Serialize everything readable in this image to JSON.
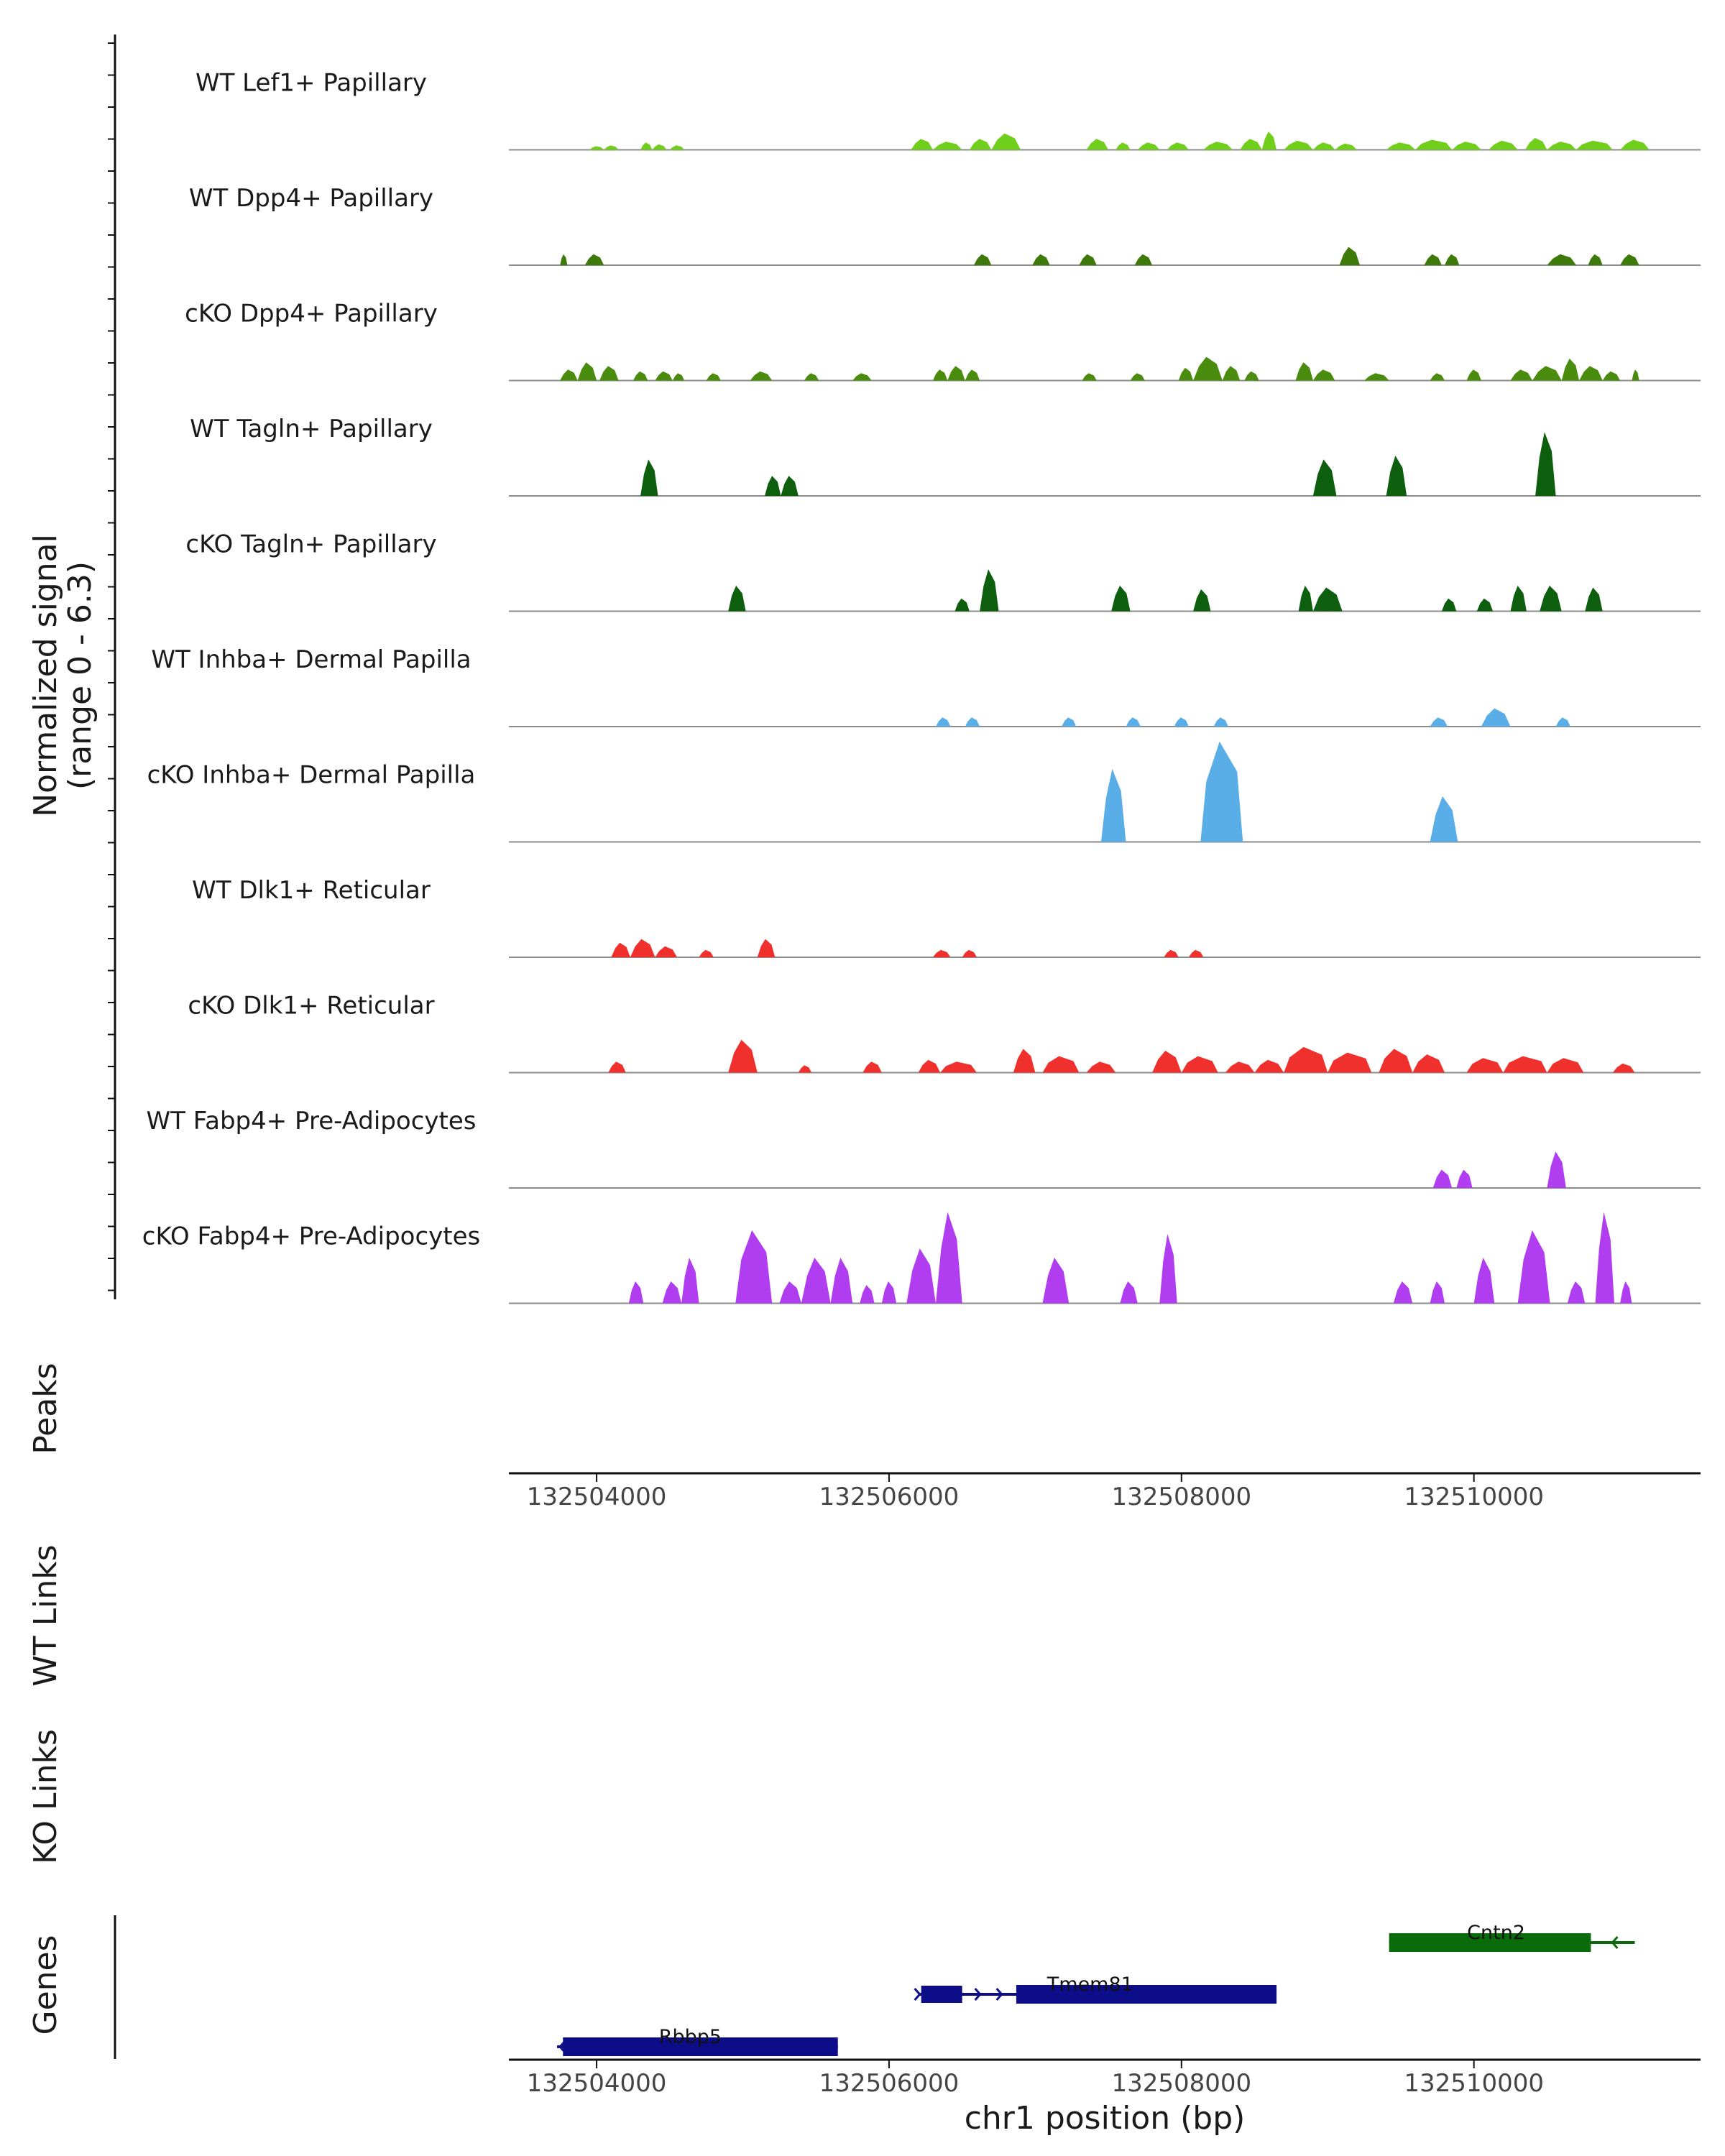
{
  "chart_data": {
    "type": "area",
    "title": "",
    "signal_axis": {
      "label": "Normalized signal",
      "range_label": "(range 0 - 6.3)",
      "ylim": [
        0,
        6.3
      ]
    },
    "xlim": [
      132503400,
      132511550
    ],
    "x_ticks": [
      132504000,
      132506000,
      132508000,
      132510000
    ],
    "x_tick_labels": [
      "132504000",
      "132506000",
      "132508000",
      "132510000"
    ],
    "xlabel": "chr1 position (bp)",
    "tracks": [
      {
        "name": "WT Lef1+ Papillary",
        "color": "#6fcf1a",
        "peaks": [
          [
            132503950,
            132504050,
            0.2
          ],
          [
            132504050,
            132504150,
            0.25
          ],
          [
            132504300,
            132504380,
            0.4
          ],
          [
            132504380,
            132504480,
            0.3
          ],
          [
            132504500,
            132504600,
            0.25
          ],
          [
            132506150,
            132506300,
            0.6
          ],
          [
            132506300,
            132506500,
            0.45
          ],
          [
            132506550,
            132506700,
            0.6
          ],
          [
            132506700,
            132506900,
            0.9
          ],
          [
            132507350,
            132507500,
            0.6
          ],
          [
            132507550,
            132507650,
            0.4
          ],
          [
            132507700,
            132507850,
            0.4
          ],
          [
            132507900,
            132508050,
            0.4
          ],
          [
            132508150,
            132508350,
            0.45
          ],
          [
            132508400,
            132508550,
            0.6
          ],
          [
            132508550,
            132508650,
            1.0
          ],
          [
            132508700,
            132508900,
            0.5
          ],
          [
            132508900,
            132509050,
            0.4
          ],
          [
            132509050,
            132509200,
            0.35
          ],
          [
            132509400,
            132509600,
            0.4
          ],
          [
            132509600,
            132509850,
            0.55
          ],
          [
            132509850,
            132510050,
            0.45
          ],
          [
            132510100,
            132510300,
            0.5
          ],
          [
            132510350,
            132510500,
            0.65
          ],
          [
            132510500,
            132510700,
            0.45
          ],
          [
            132510700,
            132510950,
            0.5
          ],
          [
            132511000,
            132511200,
            0.55
          ]
        ]
      },
      {
        "name": "WT Dpp4+ Papillary",
        "color": "#3d7a0a",
        "peaks": [
          [
            132503750,
            132503800,
            0.6
          ],
          [
            132503920,
            132504050,
            0.6
          ],
          [
            132506580,
            132506700,
            0.6
          ],
          [
            132506980,
            132507100,
            0.6
          ],
          [
            132507300,
            132507420,
            0.6
          ],
          [
            132507680,
            132507800,
            0.6
          ],
          [
            132509080,
            132509220,
            1.0
          ],
          [
            132509660,
            132509780,
            0.6
          ],
          [
            132509800,
            132509900,
            0.6
          ],
          [
            132510500,
            132510700,
            0.6
          ],
          [
            132510780,
            132510880,
            0.6
          ],
          [
            132511000,
            132511130,
            0.6
          ]
        ]
      },
      {
        "name": "cKO Dpp4+ Papillary",
        "color": "#4a8c0e",
        "peaks": [
          [
            132503750,
            132503870,
            0.6
          ],
          [
            132503870,
            132504000,
            1.0
          ],
          [
            132504020,
            132504150,
            0.8
          ],
          [
            132504250,
            132504350,
            0.5
          ],
          [
            132504400,
            132504520,
            0.5
          ],
          [
            132504520,
            132504600,
            0.4
          ],
          [
            132504750,
            132504850,
            0.4
          ],
          [
            132505050,
            132505200,
            0.5
          ],
          [
            132505420,
            132505520,
            0.4
          ],
          [
            132505750,
            132505880,
            0.4
          ],
          [
            132506300,
            132506400,
            0.6
          ],
          [
            132506400,
            132506520,
            0.8
          ],
          [
            132506520,
            132506620,
            0.6
          ],
          [
            132507320,
            132507420,
            0.4
          ],
          [
            132507650,
            132507750,
            0.4
          ],
          [
            132507980,
            132508080,
            0.7
          ],
          [
            132508080,
            132508280,
            1.3
          ],
          [
            132508280,
            132508400,
            0.8
          ],
          [
            132508430,
            132508530,
            0.5
          ],
          [
            132508780,
            132508900,
            1.0
          ],
          [
            132508900,
            132509050,
            0.6
          ],
          [
            132509250,
            132509420,
            0.4
          ],
          [
            132509700,
            132509800,
            0.4
          ],
          [
            132509950,
            132510050,
            0.6
          ],
          [
            132510250,
            132510400,
            0.6
          ],
          [
            132510400,
            132510600,
            0.8
          ],
          [
            132510600,
            132510720,
            1.2
          ],
          [
            132510720,
            132510880,
            0.8
          ],
          [
            132510880,
            132511000,
            0.5
          ],
          [
            132511080,
            132511130,
            0.6
          ]
        ]
      },
      {
        "name": "WT Tagln+ Papillary",
        "color": "#0d5e0d",
        "peaks": [
          [
            132504300,
            132504420,
            2.0
          ],
          [
            132505150,
            132505260,
            1.1
          ],
          [
            132505260,
            132505380,
            1.1
          ],
          [
            132508900,
            132509060,
            2.0
          ],
          [
            132509400,
            132509540,
            2.2
          ],
          [
            132510420,
            132510560,
            3.5
          ]
        ]
      },
      {
        "name": "cKO Tagln+ Papillary",
        "color": "#0d5e0d",
        "peaks": [
          [
            132504900,
            132505020,
            1.4
          ],
          [
            132506450,
            132506550,
            0.7
          ],
          [
            132506620,
            132506750,
            2.3
          ],
          [
            132507520,
            132507650,
            1.4
          ],
          [
            132508080,
            132508200,
            1.2
          ],
          [
            132508800,
            132508900,
            1.4
          ],
          [
            132508900,
            132509100,
            1.3
          ],
          [
            132509780,
            132509880,
            0.7
          ],
          [
            132510020,
            132510130,
            0.7
          ],
          [
            132510250,
            132510360,
            1.4
          ],
          [
            132510450,
            132510600,
            1.4
          ],
          [
            132510760,
            132510880,
            1.3
          ]
        ]
      },
      {
        "name": "WT Inhba+ Dermal Papilla",
        "color": "#5aaee8",
        "peaks": [
          [
            132506320,
            132506420,
            0.5
          ],
          [
            132506520,
            132506620,
            0.5
          ],
          [
            132507180,
            132507280,
            0.5
          ],
          [
            132507620,
            132507720,
            0.5
          ],
          [
            132507950,
            132508050,
            0.5
          ],
          [
            132508220,
            132508320,
            0.5
          ],
          [
            132509700,
            132509820,
            0.5
          ],
          [
            132510050,
            132510250,
            1.0
          ],
          [
            132510560,
            132510660,
            0.5
          ]
        ]
      },
      {
        "name": "cKO Inhba+ Dermal Papilla",
        "color": "#5aaee8",
        "peaks": [
          [
            132507450,
            132507620,
            4.0
          ],
          [
            132508130,
            132508420,
            5.5
          ],
          [
            132509700,
            132509890,
            2.5
          ]
        ]
      },
      {
        "name": "WT Dlk1+ Reticular",
        "color": "#f0302c",
        "peaks": [
          [
            132504100,
            132504230,
            0.8
          ],
          [
            132504230,
            132504400,
            1.0
          ],
          [
            132504400,
            132504550,
            0.6
          ],
          [
            132504700,
            132504800,
            0.4
          ],
          [
            132505100,
            132505220,
            1.0
          ],
          [
            132506300,
            132506420,
            0.4
          ],
          [
            132506500,
            132506600,
            0.4
          ],
          [
            132507880,
            132507980,
            0.4
          ],
          [
            132508050,
            132508150,
            0.4
          ]
        ]
      },
      {
        "name": "cKO Dlk1+ Reticular",
        "color": "#f0302c",
        "peaks": [
          [
            132504080,
            132504200,
            0.6
          ],
          [
            132504900,
            132505100,
            1.8
          ],
          [
            132505380,
            132505470,
            0.4
          ],
          [
            132505820,
            132505950,
            0.6
          ],
          [
            132506200,
            132506350,
            0.7
          ],
          [
            132506350,
            132506600,
            0.6
          ],
          [
            132506850,
            132507000,
            1.3
          ],
          [
            132507050,
            132507300,
            0.9
          ],
          [
            132507350,
            132507550,
            0.6
          ],
          [
            132507800,
            132508000,
            1.2
          ],
          [
            132508000,
            132508250,
            0.9
          ],
          [
            132508300,
            132508500,
            0.6
          ],
          [
            132508500,
            132508700,
            0.7
          ],
          [
            132508700,
            132509000,
            1.4
          ],
          [
            132509000,
            132509300,
            1.1
          ],
          [
            132509350,
            132509580,
            1.3
          ],
          [
            132509580,
            132509800,
            1.0
          ],
          [
            132509950,
            132510200,
            0.8
          ],
          [
            132510200,
            132510500,
            0.9
          ],
          [
            132510500,
            132510750,
            0.8
          ],
          [
            132510950,
            132511100,
            0.5
          ]
        ]
      },
      {
        "name": "WT Fabp4+ Pre-Adipocytes",
        "color": "#b03ef0",
        "peaks": [
          [
            132509720,
            132509850,
            1.0
          ],
          [
            132509880,
            132509990,
            1.0
          ],
          [
            132510500,
            132510630,
            2.0
          ]
        ]
      },
      {
        "name": "cKO Fabp4+ Pre-Adipocytes",
        "color": "#b03ef0",
        "peaks": [
          [
            132504220,
            132504320,
            1.2
          ],
          [
            132504450,
            132504580,
            1.2
          ],
          [
            132504580,
            132504700,
            2.5
          ],
          [
            132504950,
            132505200,
            4.0
          ],
          [
            132505250,
            132505400,
            1.2
          ],
          [
            132505400,
            132505600,
            2.5
          ],
          [
            132505600,
            132505750,
            2.5
          ],
          [
            132505800,
            132505900,
            1.0
          ],
          [
            132505950,
            132506050,
            1.2
          ],
          [
            132506120,
            132506320,
            3.0
          ],
          [
            132506320,
            132506500,
            5.0
          ],
          [
            132507050,
            132507230,
            2.5
          ],
          [
            132507580,
            132507700,
            1.2
          ],
          [
            132507850,
            132507970,
            3.8
          ],
          [
            132509450,
            132509580,
            1.2
          ],
          [
            132509700,
            132509800,
            1.2
          ],
          [
            132510000,
            132510140,
            2.5
          ],
          [
            132510300,
            132510520,
            4.0
          ],
          [
            132510640,
            132510760,
            1.2
          ],
          [
            132510830,
            132510960,
            5.0
          ],
          [
            132511000,
            132511080,
            1.2
          ]
        ]
      }
    ],
    "empty_tracks": [
      "Peaks",
      "WT Links",
      "KO Links"
    ],
    "genes_track": {
      "label": "Genes",
      "genes": [
        {
          "name": "Cntn2",
          "color": "#0a6b0a",
          "strand": "-",
          "start": 132509420,
          "end": 132511100,
          "thick_start": 132509420,
          "thick_end": 132510800,
          "row": 0
        },
        {
          "name": "Tmem81",
          "color": "#0d0d8a",
          "strand": "+",
          "start": 132506200,
          "end": 132508650,
          "thick_start": 132506870,
          "thick_end": 132508650,
          "exons": [
            [
              132506220,
              132506500
            ]
          ],
          "row": 1
        },
        {
          "name": "Rbbp5",
          "color": "#0d0d8a",
          "strand": "-",
          "start": 132503730,
          "end": 132505650,
          "thick_start": 132503770,
          "thick_end": 132505650,
          "row": 2
        }
      ]
    }
  }
}
